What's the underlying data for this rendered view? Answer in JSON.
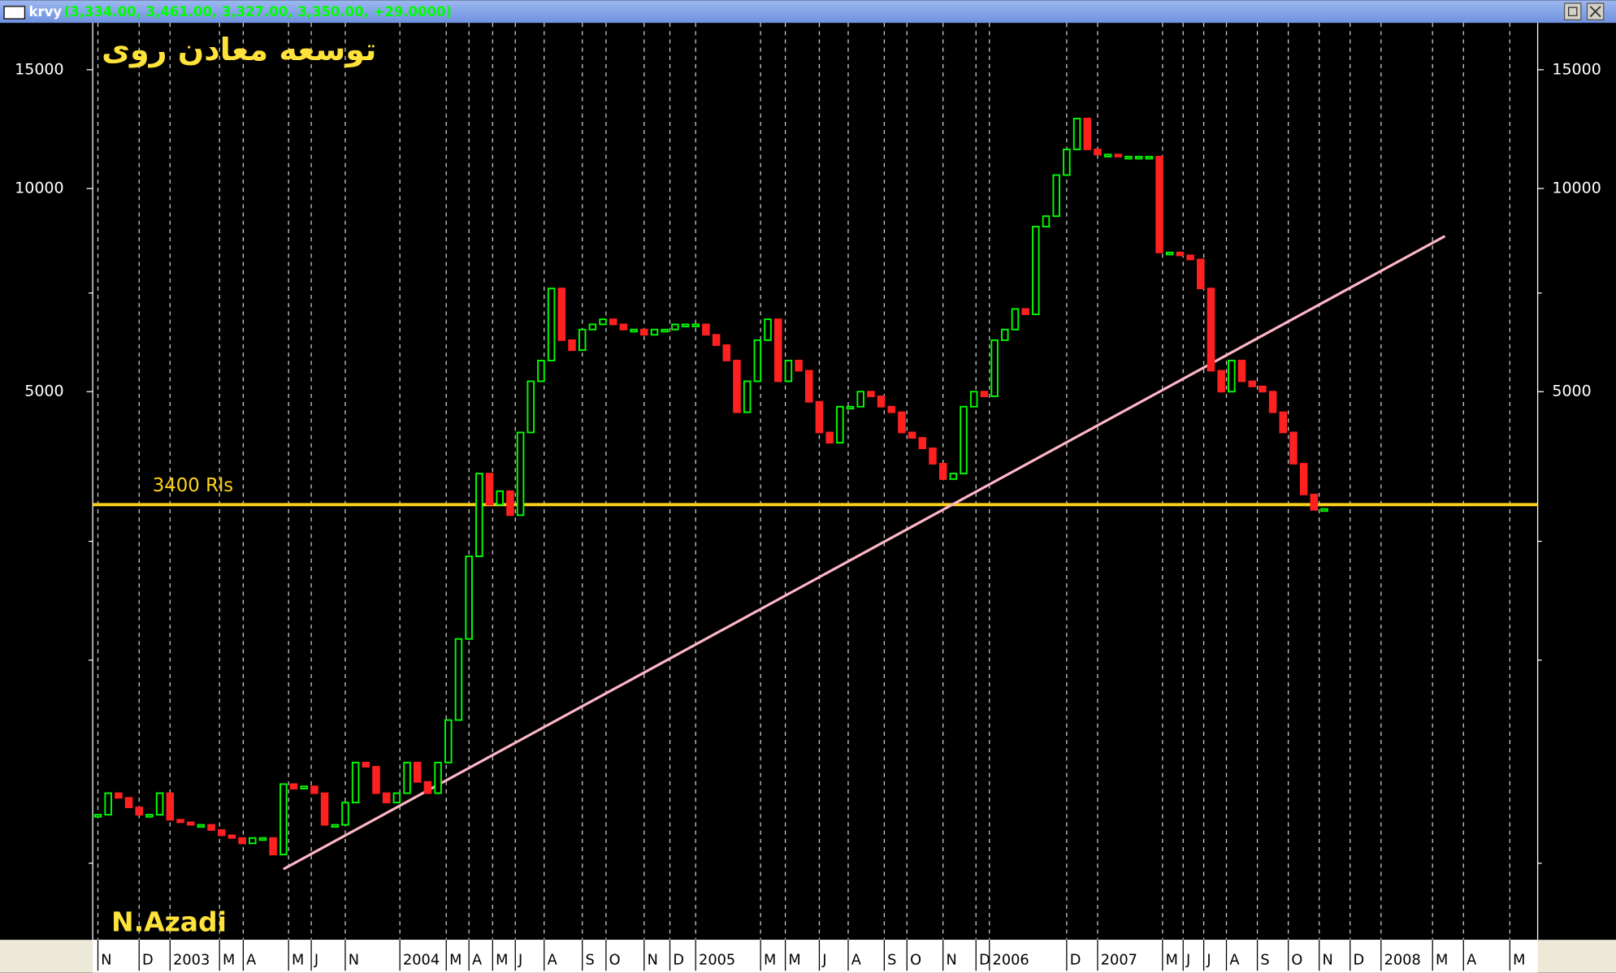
{
  "window": {
    "symbol": "krvy",
    "quote": "(3,334.00, 3,461.00, 3,327.00, 3,350.00, +29.0000)"
  },
  "chart_data": {
    "type": "candlestick",
    "title": "توسعه معادن روی",
    "annotation": "N.Azadi",
    "log_scale": true,
    "grid": true,
    "up_color": "#00ff00",
    "down_color": "#ff2020",
    "xlim": [
      0,
      140.2
    ],
    "ylim": [
      770,
      17600
    ],
    "yticks": [
      15000,
      10000,
      5000
    ],
    "yminor_ticks": [
      7000,
      3000,
      2000,
      1000
    ],
    "xticks": [
      {
        "value": 0.5,
        "label": "N"
      },
      {
        "value": 4.5,
        "label": "D"
      },
      {
        "value": 7.5,
        "label": "2003"
      },
      {
        "value": 12.3,
        "label": "M"
      },
      {
        "value": 14.6,
        "label": "A"
      },
      {
        "value": 19,
        "label": "M"
      },
      {
        "value": 21.2,
        "label": "J"
      },
      {
        "value": 24.5,
        "label": "N"
      },
      {
        "value": 29.8,
        "label": "2004"
      },
      {
        "value": 34.3,
        "label": "M"
      },
      {
        "value": 36.5,
        "label": "A"
      },
      {
        "value": 38.8,
        "label": "M"
      },
      {
        "value": 41,
        "label": "J"
      },
      {
        "value": 43.8,
        "label": "A"
      },
      {
        "value": 47.5,
        "label": "S"
      },
      {
        "value": 49.8,
        "label": "O"
      },
      {
        "value": 53.5,
        "label": "N"
      },
      {
        "value": 56,
        "label": "D"
      },
      {
        "value": 58.5,
        "label": "2005"
      },
      {
        "value": 64.8,
        "label": "M"
      },
      {
        "value": 67.2,
        "label": "M"
      },
      {
        "value": 70.5,
        "label": "J"
      },
      {
        "value": 73.3,
        "label": "A"
      },
      {
        "value": 76.8,
        "label": "S"
      },
      {
        "value": 79,
        "label": "O"
      },
      {
        "value": 82.5,
        "label": "N"
      },
      {
        "value": 85.7,
        "label": "D"
      },
      {
        "value": 87,
        "label": "2006"
      },
      {
        "value": 94.5,
        "label": "D"
      },
      {
        "value": 97.5,
        "label": "2007"
      },
      {
        "value": 103.8,
        "label": "M"
      },
      {
        "value": 105.8,
        "label": "J"
      },
      {
        "value": 107.8,
        "label": "J"
      },
      {
        "value": 110,
        "label": "A"
      },
      {
        "value": 113,
        "label": "S"
      },
      {
        "value": 116,
        "label": "O"
      },
      {
        "value": 119,
        "label": "N"
      },
      {
        "value": 122,
        "label": "D"
      },
      {
        "value": 125,
        "label": "2008"
      },
      {
        "value": 130,
        "label": "M"
      },
      {
        "value": 133,
        "label": "A"
      },
      {
        "value": 137.5,
        "label": "M"
      }
    ],
    "x": [
      0.5,
      1.5,
      2.5,
      3.5,
      4.5,
      5.5,
      6.5,
      7.5,
      8.5,
      9.5,
      10.5,
      11.5,
      12.5,
      13.5,
      14.5,
      15.5,
      16.5,
      17.5,
      18.5,
      19.5,
      20.5,
      21.5,
      22.5,
      23.5,
      24.5,
      25.5,
      26.5,
      27.5,
      28.5,
      29.5,
      30.5,
      31.5,
      32.5,
      33.5,
      34.5,
      35.5,
      36.5,
      37.5,
      38.5,
      39.5,
      40.5,
      41.5,
      42.5,
      43.5,
      44.5,
      45.5,
      46.5,
      47.5,
      48.5,
      49.5,
      50.5,
      51.5,
      52.5,
      53.5,
      54.5,
      55.5,
      56.5,
      57.5,
      58.5,
      59.5,
      60.5,
      61.5,
      62.5,
      63.5,
      64.5,
      65.5,
      66.5,
      67.5,
      68.5,
      69.5,
      70.5,
      71.5,
      72.5,
      73.5,
      74.5,
      75.5,
      76.5,
      77.5,
      78.5,
      79.5,
      80.5,
      81.5,
      82.5,
      83.5,
      84.5,
      85.5,
      86.5,
      87.5,
      88.5,
      89.5,
      90.5,
      91.5,
      92.5,
      93.5,
      94.5,
      95.5,
      96.5,
      97.5,
      98.5,
      99.5,
      100.5,
      101.5,
      102.5,
      103.5,
      104.5,
      105.5,
      106.5,
      107.5,
      108.5,
      109.5,
      110.5,
      111.5,
      112.5,
      113.5,
      114.5,
      115.5,
      116.5,
      117.5,
      118.5,
      119.5
    ],
    "close": [
      1180,
      1270,
      1250,
      1210,
      1180,
      1180,
      1270,
      1160,
      1150,
      1140,
      1140,
      1120,
      1100,
      1090,
      1070,
      1090,
      1090,
      1030,
      1310,
      1290,
      1300,
      1270,
      1140,
      1140,
      1230,
      1410,
      1390,
      1270,
      1230,
      1270,
      1410,
      1320,
      1270,
      1410,
      1630,
      2150,
      2850,
      3780,
      3400,
      3560,
      3280,
      4350,
      5180,
      5560,
      7110,
      5960,
      5760,
      6180,
      6290,
      6400,
      6290,
      6180,
      6180,
      6070,
      6180,
      6180,
      6290,
      6290,
      6290,
      6070,
      5860,
      5560,
      4660,
      5180,
      5960,
      6400,
      5180,
      5560,
      5370,
      4830,
      4350,
      4200,
      4750,
      4750,
      5000,
      4920,
      4750,
      4660,
      4350,
      4270,
      4120,
      3910,
      3710,
      3780,
      4750,
      5000,
      4920,
      5960,
      6180,
      6630,
      6510,
      8780,
      9100,
      10470,
      11430,
      12700,
      11430,
      11230,
      11230,
      11150,
      11150,
      11150,
      11150,
      8040,
      8040,
      7960,
      7850,
      7110,
      5370,
      5000,
      5560,
      5180,
      5090,
      5000,
      4660,
      4350,
      3910,
      3520,
      3340,
      3350
    ],
    "hline": {
      "value": 3400,
      "label": "3400 Rls",
      "color": "#ffd21a"
    },
    "trendline": {
      "x": [
        18.5,
        131.2
      ],
      "y": [
        980,
        8500
      ],
      "color": "#ffb6c8"
    }
  }
}
